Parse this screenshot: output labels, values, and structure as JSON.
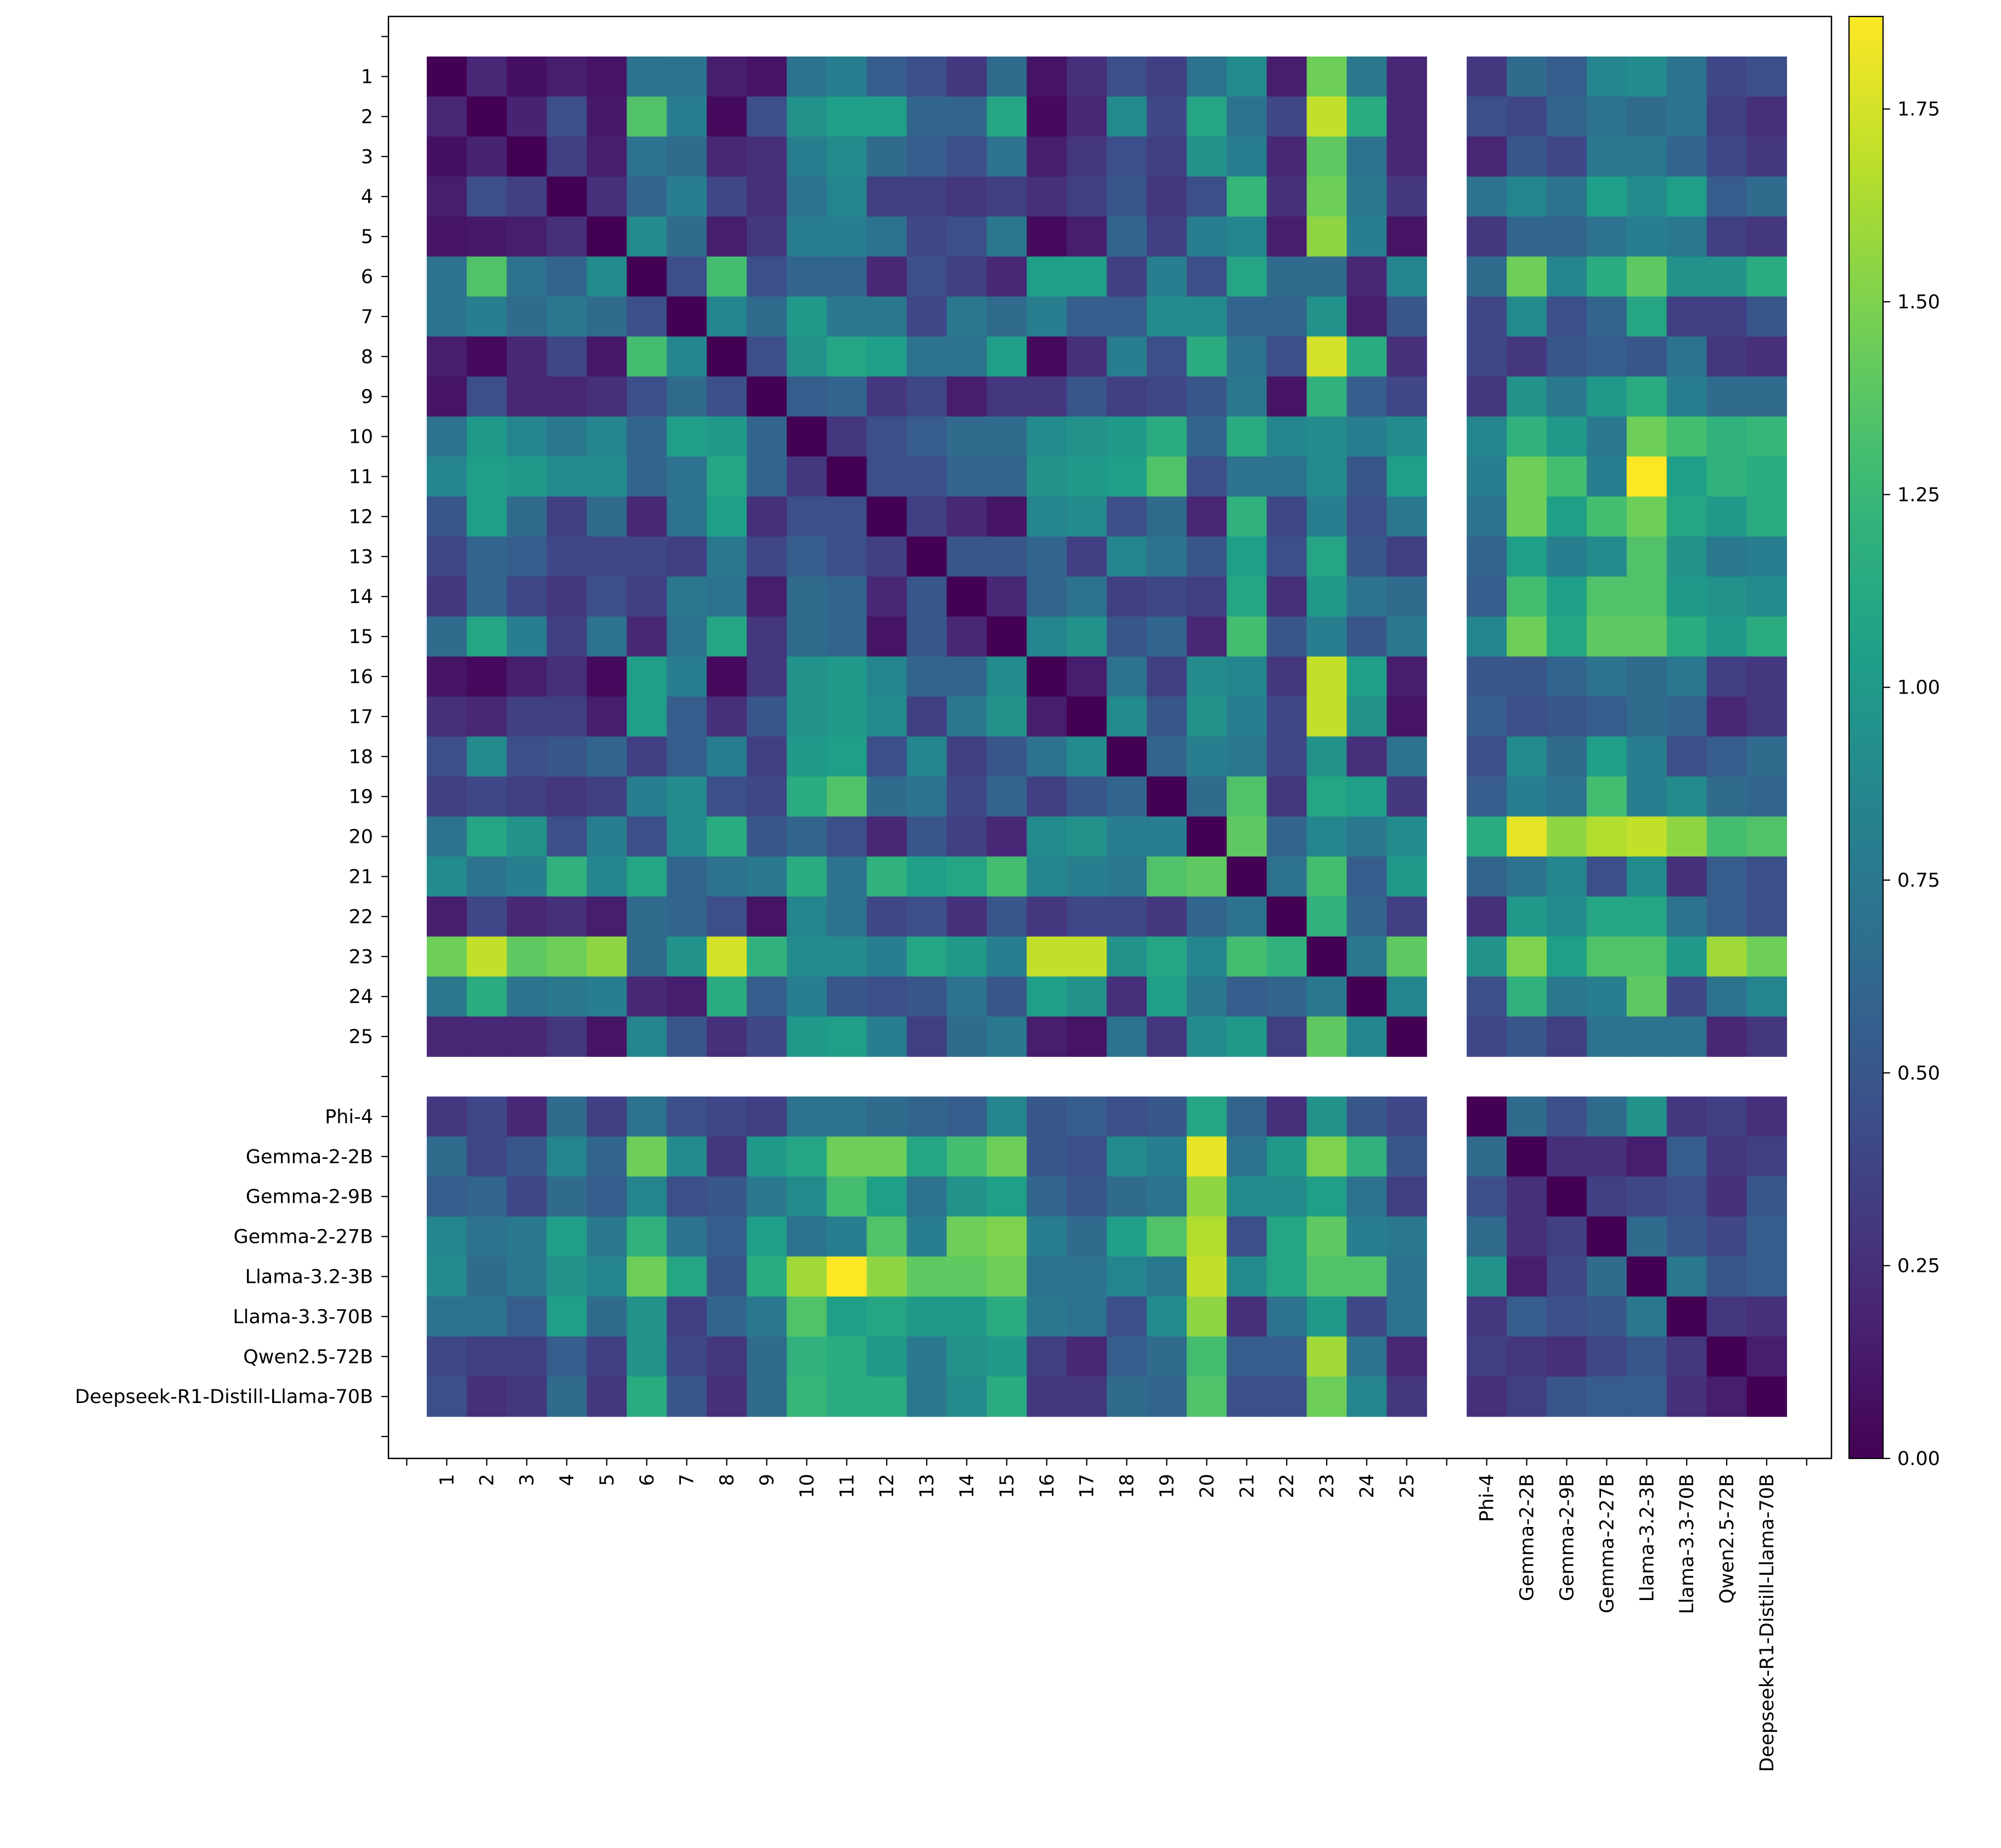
{
  "chart_data": {
    "type": "heatmap",
    "title": "",
    "xlabel": "",
    "ylabel": "",
    "colormap": "viridis",
    "vmin": 0.0,
    "vmax": 1.87,
    "colorbar_ticks": [
      0.0,
      0.25,
      0.5,
      0.75,
      1.0,
      1.25,
      1.5,
      1.75
    ],
    "colorbar_tick_labels": [
      "0.00",
      "0.25",
      "0.50",
      "0.75",
      "1.00",
      "1.25",
      "1.50",
      "1.75"
    ],
    "row_labels": [
      "1",
      "2",
      "3",
      "4",
      "5",
      "6",
      "7",
      "8",
      "9",
      "10",
      "11",
      "12",
      "13",
      "14",
      "15",
      "16",
      "17",
      "18",
      "19",
      "20",
      "21",
      "22",
      "23",
      "24",
      "25",
      "",
      "Phi-4",
      "Gemma-2-2B",
      "Gemma-2-9B",
      "Gemma-2-27B",
      "Llama-3.2-3B",
      "Llama-3.3-70B",
      "Qwen2.5-72B",
      "Deepseek-R1-Distill-Llama-70B"
    ],
    "col_labels": [
      "1",
      "2",
      "3",
      "4",
      "5",
      "6",
      "7",
      "8",
      "9",
      "10",
      "11",
      "12",
      "13",
      "14",
      "15",
      "16",
      "17",
      "18",
      "19",
      "20",
      "21",
      "22",
      "23",
      "24",
      "25",
      "",
      "Phi-4",
      "Gemma-2-2B",
      "Gemma-2-9B",
      "Gemma-2-27B",
      "Llama-3.2-3B",
      "Llama-3.3-70B",
      "Qwen2.5-72B",
      "Deepseek-R1-Distill-Llama-70B"
    ],
    "gap_index": 25,
    "matrix": [
      [
        0.0,
        0.2,
        0.08,
        0.15,
        0.1,
        0.7,
        0.72,
        0.15,
        0.1,
        0.7,
        0.8,
        0.55,
        0.45,
        0.3,
        0.65,
        0.1,
        0.25,
        0.45,
        0.35,
        0.7,
        0.9,
        0.15,
        1.45,
        0.75,
        0.2,
        null,
        0.3,
        0.65,
        0.55,
        0.85,
        0.9,
        0.7,
        0.4,
        0.45
      ],
      [
        0.2,
        0.0,
        0.18,
        0.45,
        0.12,
        1.35,
        0.8,
        0.05,
        0.45,
        0.95,
        1.05,
        1.05,
        0.6,
        0.6,
        1.1,
        0.05,
        0.2,
        0.9,
        0.4,
        1.1,
        0.7,
        0.4,
        1.7,
        1.15,
        0.2,
        null,
        0.45,
        0.4,
        0.6,
        0.7,
        0.65,
        0.7,
        0.35,
        0.25
      ],
      [
        0.08,
        0.18,
        0.0,
        0.35,
        0.15,
        0.7,
        0.65,
        0.2,
        0.25,
        0.8,
        0.9,
        0.65,
        0.55,
        0.45,
        0.7,
        0.15,
        0.3,
        0.45,
        0.35,
        0.95,
        0.8,
        0.2,
        1.4,
        0.7,
        0.2,
        null,
        0.2,
        0.5,
        0.4,
        0.75,
        0.75,
        0.6,
        0.4,
        0.3
      ],
      [
        0.15,
        0.45,
        0.35,
        0.0,
        0.25,
        0.6,
        0.8,
        0.4,
        0.25,
        0.7,
        0.85,
        0.35,
        0.35,
        0.3,
        0.35,
        0.25,
        0.35,
        0.5,
        0.3,
        0.45,
        1.25,
        0.25,
        1.45,
        0.75,
        0.3,
        null,
        0.7,
        0.85,
        0.7,
        1.05,
        0.9,
        1.05,
        0.55,
        0.65
      ],
      [
        0.1,
        0.12,
        0.15,
        0.25,
        0.0,
        0.9,
        0.65,
        0.15,
        0.3,
        0.8,
        0.8,
        0.7,
        0.4,
        0.45,
        0.75,
        0.05,
        0.15,
        0.6,
        0.35,
        0.8,
        0.85,
        0.15,
        1.55,
        0.8,
        0.1,
        null,
        0.3,
        0.6,
        0.6,
        0.7,
        0.8,
        0.75,
        0.35,
        0.3
      ],
      [
        0.7,
        1.35,
        0.7,
        0.6,
        0.9,
        0.0,
        0.45,
        1.3,
        0.45,
        0.6,
        0.6,
        0.2,
        0.45,
        0.35,
        0.2,
        1.05,
        1.05,
        0.35,
        0.8,
        0.45,
        1.1,
        0.65,
        0.65,
        0.2,
        0.85,
        null,
        0.65,
        1.45,
        0.85,
        1.15,
        1.4,
        0.95,
        0.95,
        1.15
      ],
      [
        0.72,
        0.8,
        0.65,
        0.75,
        0.65,
        0.45,
        0.0,
        0.85,
        0.65,
        1.0,
        0.75,
        0.75,
        0.4,
        0.75,
        0.65,
        0.8,
        0.55,
        0.55,
        0.9,
        0.9,
        0.6,
        0.6,
        0.95,
        0.15,
        0.5,
        null,
        0.4,
        0.9,
        0.45,
        0.6,
        1.1,
        0.35,
        0.35,
        0.5
      ],
      [
        0.15,
        0.05,
        0.2,
        0.4,
        0.12,
        1.3,
        0.85,
        0.0,
        0.45,
        0.95,
        1.1,
        1.05,
        0.7,
        0.7,
        1.05,
        0.05,
        0.25,
        0.8,
        0.45,
        1.15,
        0.7,
        0.45,
        1.75,
        1.15,
        0.25,
        null,
        0.4,
        0.3,
        0.5,
        0.55,
        0.5,
        0.7,
        0.3,
        0.25
      ],
      [
        0.1,
        0.45,
        0.2,
        0.2,
        0.25,
        0.45,
        0.65,
        0.45,
        0.0,
        0.55,
        0.6,
        0.3,
        0.4,
        0.15,
        0.3,
        0.3,
        0.5,
        0.35,
        0.4,
        0.5,
        0.75,
        0.1,
        1.2,
        0.55,
        0.4,
        null,
        0.3,
        0.95,
        0.75,
        1.0,
        1.15,
        0.8,
        0.65,
        0.65
      ],
      [
        0.7,
        1.0,
        0.85,
        0.75,
        0.85,
        0.6,
        1.05,
        1.0,
        0.6,
        0.0,
        0.3,
        0.45,
        0.55,
        0.65,
        0.65,
        0.9,
        0.95,
        1.0,
        1.15,
        0.6,
        1.15,
        0.85,
        0.9,
        0.8,
        0.9,
        null,
        0.85,
        1.2,
        1.0,
        0.75,
        1.45,
        1.3,
        1.2,
        1.25
      ],
      [
        0.85,
        1.05,
        1.0,
        0.9,
        0.9,
        0.6,
        0.7,
        1.1,
        0.6,
        0.3,
        0.0,
        0.45,
        0.45,
        0.6,
        0.6,
        0.95,
        1.0,
        1.05,
        1.35,
        0.45,
        0.7,
        0.7,
        0.9,
        0.5,
        1.05,
        null,
        0.8,
        1.45,
        1.3,
        0.8,
        1.87,
        1.05,
        1.2,
        1.15
      ],
      [
        0.5,
        1.05,
        0.65,
        0.35,
        0.65,
        0.2,
        0.7,
        1.05,
        0.25,
        0.45,
        0.45,
        0.0,
        0.35,
        0.2,
        0.1,
        0.85,
        0.9,
        0.45,
        0.65,
        0.2,
        1.2,
        0.4,
        0.8,
        0.45,
        0.75,
        null,
        0.7,
        1.45,
        1.05,
        1.3,
        1.45,
        1.1,
        1.0,
        1.15
      ],
      [
        0.4,
        0.6,
        0.55,
        0.4,
        0.4,
        0.4,
        0.35,
        0.75,
        0.4,
        0.55,
        0.45,
        0.35,
        0.0,
        0.5,
        0.5,
        0.6,
        0.35,
        0.85,
        0.7,
        0.5,
        1.05,
        0.45,
        1.1,
        0.5,
        0.35,
        null,
        0.6,
        1.05,
        0.8,
        0.9,
        1.35,
        0.95,
        0.75,
        0.8
      ],
      [
        0.3,
        0.6,
        0.4,
        0.3,
        0.45,
        0.35,
        0.75,
        0.7,
        0.15,
        0.65,
        0.6,
        0.2,
        0.5,
        0.0,
        0.2,
        0.6,
        0.7,
        0.35,
        0.4,
        0.35,
        1.1,
        0.25,
        1.0,
        0.7,
        0.65,
        null,
        0.55,
        1.3,
        1.05,
        1.35,
        1.35,
        1.0,
        0.95,
        0.9
      ],
      [
        0.65,
        1.1,
        0.8,
        0.35,
        0.7,
        0.2,
        0.7,
        1.1,
        0.3,
        0.65,
        0.6,
        0.1,
        0.5,
        0.2,
        0.0,
        0.85,
        0.95,
        0.5,
        0.6,
        0.2,
        1.3,
        0.5,
        0.8,
        0.5,
        0.75,
        null,
        0.85,
        1.45,
        1.1,
        1.4,
        1.4,
        1.15,
        1.0,
        1.15
      ],
      [
        0.1,
        0.05,
        0.15,
        0.25,
        0.05,
        1.05,
        0.8,
        0.05,
        0.3,
        0.95,
        1.0,
        0.85,
        0.6,
        0.6,
        0.9,
        0.0,
        0.15,
        0.7,
        0.35,
        0.9,
        0.85,
        0.3,
        1.7,
        1.05,
        0.15,
        null,
        0.5,
        0.5,
        0.6,
        0.7,
        0.65,
        0.75,
        0.35,
        0.3
      ],
      [
        0.25,
        0.2,
        0.35,
        0.35,
        0.15,
        1.05,
        0.55,
        0.25,
        0.5,
        0.95,
        1.0,
        0.9,
        0.35,
        0.75,
        0.95,
        0.15,
        0.0,
        0.9,
        0.5,
        0.95,
        0.8,
        0.4,
        1.7,
        0.95,
        0.1,
        null,
        0.55,
        0.45,
        0.5,
        0.55,
        0.65,
        0.6,
        0.2,
        0.3
      ],
      [
        0.45,
        0.9,
        0.45,
        0.5,
        0.6,
        0.35,
        0.55,
        0.8,
        0.35,
        1.0,
        1.05,
        0.45,
        0.85,
        0.35,
        0.5,
        0.7,
        0.9,
        0.0,
        0.6,
        0.8,
        0.75,
        0.4,
        0.95,
        0.25,
        0.7,
        null,
        0.45,
        0.9,
        0.65,
        1.05,
        0.8,
        0.45,
        0.55,
        0.65
      ],
      [
        0.35,
        0.4,
        0.35,
        0.3,
        0.35,
        0.8,
        0.9,
        0.45,
        0.4,
        1.15,
        1.35,
        0.65,
        0.7,
        0.4,
        0.6,
        0.35,
        0.5,
        0.6,
        0.0,
        0.65,
        1.35,
        0.3,
        1.1,
        1.05,
        0.3,
        null,
        0.55,
        0.8,
        0.7,
        1.3,
        0.8,
        0.9,
        0.65,
        0.6
      ],
      [
        0.7,
        1.1,
        0.95,
        0.45,
        0.8,
        0.45,
        0.9,
        1.15,
        0.5,
        0.6,
        0.45,
        0.2,
        0.5,
        0.35,
        0.2,
        0.9,
        0.95,
        0.8,
        0.8,
        0.0,
        1.4,
        0.6,
        0.85,
        0.75,
        0.9,
        null,
        1.15,
        1.8,
        1.55,
        1.65,
        1.7,
        1.55,
        1.3,
        1.35
      ],
      [
        0.9,
        0.7,
        0.8,
        1.2,
        0.85,
        1.1,
        0.6,
        0.7,
        0.75,
        1.15,
        0.7,
        1.2,
        1.05,
        1.1,
        1.3,
        0.85,
        0.8,
        0.75,
        1.35,
        1.4,
        0.0,
        0.7,
        1.3,
        0.55,
        1.0,
        null,
        0.6,
        0.7,
        0.85,
        0.45,
        0.9,
        0.25,
        0.55,
        0.45
      ],
      [
        0.15,
        0.4,
        0.2,
        0.25,
        0.15,
        0.65,
        0.6,
        0.45,
        0.1,
        0.85,
        0.7,
        0.4,
        0.45,
        0.25,
        0.5,
        0.3,
        0.4,
        0.4,
        0.3,
        0.6,
        0.7,
        0.0,
        1.2,
        0.6,
        0.35,
        null,
        0.25,
        1.0,
        0.9,
        1.1,
        1.1,
        0.7,
        0.55,
        0.45
      ],
      [
        1.45,
        1.7,
        1.4,
        1.45,
        1.55,
        0.65,
        0.95,
        1.75,
        1.2,
        0.9,
        0.9,
        0.8,
        1.1,
        1.0,
        0.8,
        1.7,
        1.7,
        0.95,
        1.1,
        0.85,
        1.3,
        1.2,
        0.0,
        0.75,
        1.4,
        null,
        0.95,
        1.5,
        1.05,
        1.35,
        1.35,
        1.0,
        1.6,
        1.45
      ],
      [
        0.75,
        1.15,
        0.7,
        0.75,
        0.8,
        0.2,
        0.15,
        1.15,
        0.55,
        0.8,
        0.5,
        0.45,
        0.5,
        0.7,
        0.5,
        1.05,
        0.95,
        0.25,
        1.05,
        0.75,
        0.55,
        0.6,
        0.75,
        0.0,
        0.85,
        null,
        0.45,
        1.2,
        0.75,
        0.8,
        1.4,
        0.4,
        0.7,
        0.85
      ],
      [
        0.2,
        0.2,
        0.2,
        0.3,
        0.1,
        0.85,
        0.5,
        0.25,
        0.4,
        1.0,
        1.05,
        0.8,
        0.35,
        0.65,
        0.75,
        0.15,
        0.1,
        0.7,
        0.3,
        0.9,
        1.0,
        0.35,
        1.4,
        0.85,
        0.0,
        null,
        0.4,
        0.5,
        0.35,
        0.7,
        0.7,
        0.7,
        0.2,
        0.3
      ],
      [
        null,
        null,
        null,
        null,
        null,
        null,
        null,
        null,
        null,
        null,
        null,
        null,
        null,
        null,
        null,
        null,
        null,
        null,
        null,
        null,
        null,
        null,
        null,
        null,
        null,
        null,
        null,
        null,
        null,
        null,
        null,
        null,
        null,
        null
      ],
      [
        0.3,
        0.4,
        0.2,
        0.65,
        0.35,
        0.7,
        0.45,
        0.4,
        0.35,
        0.7,
        0.7,
        0.65,
        0.6,
        0.55,
        0.85,
        0.5,
        0.55,
        0.45,
        0.5,
        1.1,
        0.6,
        0.25,
        0.95,
        0.5,
        0.4,
        null,
        0.0,
        0.65,
        0.45,
        0.65,
        0.95,
        0.3,
        0.35,
        0.25
      ],
      [
        0.65,
        0.4,
        0.5,
        0.85,
        0.6,
        1.45,
        0.9,
        0.3,
        1.0,
        1.1,
        1.45,
        1.45,
        1.1,
        1.3,
        1.45,
        0.5,
        0.45,
        0.9,
        0.8,
        1.8,
        0.7,
        1.0,
        1.5,
        1.2,
        0.5,
        null,
        0.65,
        0.0,
        0.25,
        0.25,
        0.15,
        0.55,
        0.3,
        0.35
      ],
      [
        0.55,
        0.6,
        0.4,
        0.65,
        0.55,
        0.85,
        0.45,
        0.5,
        0.75,
        0.9,
        1.3,
        1.05,
        0.7,
        0.95,
        1.05,
        0.6,
        0.5,
        0.65,
        0.7,
        1.55,
        0.9,
        0.9,
        1.05,
        0.7,
        0.35,
        null,
        0.45,
        0.25,
        0.0,
        0.35,
        0.4,
        0.45,
        0.25,
        0.5
      ],
      [
        0.85,
        0.7,
        0.75,
        1.05,
        0.75,
        1.2,
        0.7,
        0.55,
        1.05,
        0.7,
        0.8,
        1.35,
        0.8,
        1.45,
        1.5,
        0.8,
        0.65,
        1.05,
        1.35,
        1.65,
        0.45,
        1.1,
        1.4,
        0.8,
        0.75,
        null,
        0.65,
        0.25,
        0.35,
        0.0,
        0.65,
        0.5,
        0.4,
        0.55
      ],
      [
        0.9,
        0.65,
        0.75,
        0.95,
        0.85,
        1.45,
        1.1,
        0.5,
        1.15,
        1.6,
        1.87,
        1.55,
        1.4,
        1.4,
        1.45,
        0.7,
        0.7,
        0.85,
        0.75,
        1.7,
        0.9,
        1.1,
        1.35,
        1.35,
        0.7,
        null,
        0.95,
        0.15,
        0.4,
        0.65,
        0.0,
        0.75,
        0.5,
        0.55
      ],
      [
        0.7,
        0.7,
        0.55,
        1.05,
        0.65,
        0.95,
        0.35,
        0.6,
        0.75,
        1.35,
        1.05,
        1.1,
        1.0,
        1.0,
        1.15,
        0.75,
        0.7,
        0.45,
        0.9,
        1.55,
        0.25,
        0.7,
        1.0,
        0.4,
        0.7,
        null,
        0.3,
        0.55,
        0.45,
        0.5,
        0.75,
        0.0,
        0.3,
        0.25
      ],
      [
        0.4,
        0.35,
        0.35,
        0.55,
        0.35,
        0.95,
        0.4,
        0.3,
        0.65,
        1.2,
        1.15,
        1.0,
        0.75,
        0.95,
        1.0,
        0.35,
        0.2,
        0.55,
        0.65,
        1.3,
        0.55,
        0.55,
        1.6,
        0.7,
        0.2,
        null,
        0.35,
        0.3,
        0.25,
        0.4,
        0.5,
        0.3,
        0.0,
        0.15
      ],
      [
        0.45,
        0.25,
        0.3,
        0.65,
        0.3,
        1.15,
        0.5,
        0.25,
        0.65,
        1.25,
        1.15,
        1.15,
        0.75,
        0.9,
        1.15,
        0.3,
        0.3,
        0.65,
        0.6,
        1.35,
        0.45,
        0.45,
        1.45,
        0.85,
        0.3,
        null,
        0.25,
        0.35,
        0.5,
        0.55,
        0.55,
        0.25,
        0.15,
        0.0
      ]
    ]
  }
}
